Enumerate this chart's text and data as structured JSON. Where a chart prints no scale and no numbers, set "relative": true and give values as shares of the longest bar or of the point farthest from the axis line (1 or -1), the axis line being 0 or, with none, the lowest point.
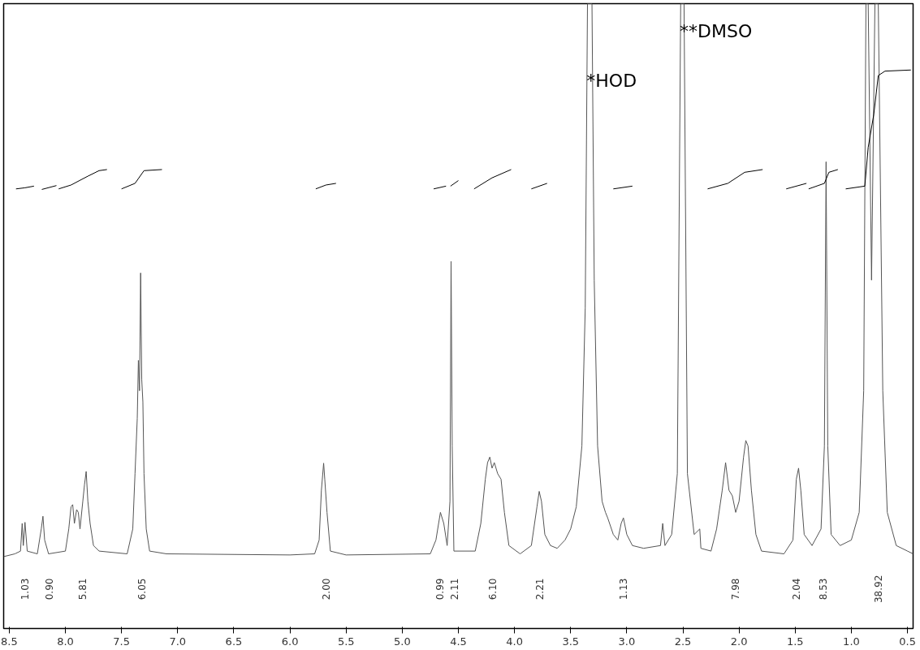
{
  "chart_data": {
    "type": "line",
    "relative": true,
    "xlim": [
      8.55,
      0.45
    ],
    "xticks": [
      8.5,
      {
        "value": 8,
        "label": "8.0"
      },
      7.5,
      {
        "value": 7,
        "label": "7.0"
      },
      6.5,
      {
        "value": 6,
        "label": "6.0"
      },
      5.5,
      {
        "value": 5,
        "label": "5.0"
      },
      4.5,
      {
        "value": 4,
        "label": "4.0"
      },
      3.5,
      {
        "value": 3,
        "label": "3.0"
      },
      2.5,
      {
        "value": 2,
        "label": "2.0"
      },
      1.5,
      {
        "value": 1,
        "label": "1.0"
      },
      0.5
    ],
    "tick_labels": "x",
    "grid": false,
    "x": [
      8.55,
      8.45,
      8.4,
      8.385,
      8.375,
      8.36,
      8.34,
      8.25,
      8.215,
      8.2,
      8.185,
      8.15,
      8.0,
      7.97,
      7.95,
      7.935,
      7.92,
      7.9,
      7.885,
      7.87,
      7.845,
      7.83,
      7.815,
      7.8,
      7.78,
      7.75,
      7.7,
      7.45,
      7.4,
      7.38,
      7.36,
      7.35,
      7.34,
      7.33,
      7.32,
      7.31,
      7.3,
      7.28,
      7.25,
      7.1,
      6.0,
      5.78,
      5.74,
      5.72,
      5.7,
      5.69,
      5.67,
      5.64,
      5.5,
      4.75,
      4.7,
      4.66,
      4.63,
      4.6,
      4.575,
      4.565,
      4.555,
      4.54,
      4.35,
      4.3,
      4.26,
      4.24,
      4.22,
      4.2,
      4.18,
      4.15,
      4.12,
      4.09,
      4.05,
      3.95,
      3.85,
      3.8,
      3.78,
      3.76,
      3.73,
      3.68,
      3.62,
      3.55,
      3.5,
      3.45,
      3.4,
      3.37,
      3.35,
      3.31,
      3.29,
      3.26,
      3.22,
      3.19,
      3.17,
      3.12,
      3.08,
      3.05,
      3.03,
      3.0,
      2.95,
      2.85,
      2.7,
      2.68,
      2.66,
      2.6,
      2.55,
      2.52,
      2.49,
      2.46,
      2.4,
      2.35,
      2.34,
      2.25,
      2.2,
      2.15,
      2.12,
      2.09,
      2.06,
      2.03,
      2.0,
      1.96,
      1.94,
      1.92,
      1.89,
      1.85,
      1.8,
      1.6,
      1.52,
      1.49,
      1.47,
      1.45,
      1.42,
      1.35,
      1.27,
      1.24,
      1.225,
      1.21,
      1.18,
      1.1,
      1.0,
      0.93,
      0.89,
      0.87,
      0.85,
      0.82,
      0.79,
      0.76,
      0.72,
      0.68,
      0.6,
      0.5,
      0.45
    ],
    "series": [
      {
        "color": "#555555",
        "values": [
          0,
          0.005,
          0.01,
          0.06,
          0.02,
          0.062,
          0.01,
          0.005,
          0.05,
          0.073,
          0.03,
          0.005,
          0.01,
          0.05,
          0.09,
          0.094,
          0.06,
          0.085,
          0.08,
          0.05,
          0.1,
          0.13,
          0.154,
          0.1,
          0.06,
          0.02,
          0.01,
          0.005,
          0.05,
          0.15,
          0.25,
          0.355,
          0.3,
          0.513,
          0.32,
          0.28,
          0.15,
          0.05,
          0.01,
          0.005,
          0.003,
          0.005,
          0.03,
          0.12,
          0.169,
          0.14,
          0.08,
          0.01,
          0.003,
          0.005,
          0.03,
          0.08,
          0.06,
          0.02,
          0.1,
          0.534,
          0.2,
          0.01,
          0.01,
          0.06,
          0.14,
          0.17,
          0.18,
          0.16,
          0.17,
          0.15,
          0.14,
          0.08,
          0.02,
          0.005,
          0.02,
          0.09,
          0.118,
          0.1,
          0.04,
          0.02,
          0.015,
          0.03,
          0.05,
          0.09,
          0.2,
          0.45,
          1.0,
          1.0,
          0.5,
          0.2,
          0.1,
          0.08,
          0.07,
          0.04,
          0.03,
          0.06,
          0.07,
          0.04,
          0.02,
          0.015,
          0.02,
          0.06,
          0.02,
          0.04,
          0.15,
          1.0,
          1.0,
          0.15,
          0.04,
          0.05,
          0.015,
          0.01,
          0.05,
          0.12,
          0.17,
          0.12,
          0.11,
          0.08,
          0.1,
          0.18,
          0.21,
          0.2,
          0.12,
          0.04,
          0.01,
          0.005,
          0.03,
          0.14,
          0.16,
          0.12,
          0.04,
          0.02,
          0.05,
          0.2,
          0.714,
          0.2,
          0.04,
          0.02,
          0.03,
          0.08,
          0.3,
          1.0,
          1.0,
          0.5,
          1.0,
          1.0,
          0.3,
          0.08,
          0.02,
          0.01,
          0.005
        ]
      },
      {
        "color": "#000000",
        "x": [
          8.44,
          8.36,
          8.28,
          null,
          8.21,
          8.08,
          null,
          8.06,
          7.95,
          7.8,
          7.7,
          7.63,
          null,
          7.5,
          7.38,
          7.3,
          7.14,
          null,
          5.77,
          5.68,
          5.59,
          null,
          4.72,
          4.61,
          null,
          4.57,
          4.5,
          null,
          4.36,
          4.2,
          4.03,
          null,
          3.85,
          3.71,
          null,
          3.12,
          2.95,
          null,
          2.28,
          2.1,
          1.95,
          1.79,
          null,
          1.58,
          1.4,
          null,
          1.38,
          1.24,
          1.2,
          1.12,
          null,
          1.05,
          0.88,
          0.85,
          0.8,
          0.76,
          0.7,
          0.47
        ],
        "values": [
          0.665,
          0.667,
          0.67,
          null,
          0.664,
          0.671,
          null,
          0.665,
          0.672,
          0.688,
          0.698,
          0.7,
          null,
          0.665,
          0.675,
          0.698,
          0.7,
          null,
          0.665,
          0.672,
          0.675,
          null,
          0.665,
          0.67,
          null,
          0.67,
          0.68,
          null,
          0.665,
          0.685,
          0.7,
          null,
          0.665,
          0.675,
          null,
          0.665,
          0.67,
          null,
          0.665,
          0.675,
          0.695,
          0.7,
          null,
          0.665,
          0.675,
          null,
          0.665,
          0.675,
          0.695,
          0.7,
          null,
          0.665,
          0.67,
          0.74,
          0.8,
          0.87,
          0.878,
          0.88
        ]
      }
    ],
    "annotations": [
      {
        "text": "*HOD",
        "x": 3.33,
        "y": 0.86
      },
      {
        "text": "**DMSO",
        "x": 2.5,
        "y": 0.95
      },
      "1.03",
      "0.90",
      "5.81",
      "6.05",
      "2.00",
      "0.99",
      "2.11",
      "6.10",
      "2.21",
      "1.13",
      "7.98",
      "2.04",
      "8.53",
      "38.92"
    ]
  }
}
